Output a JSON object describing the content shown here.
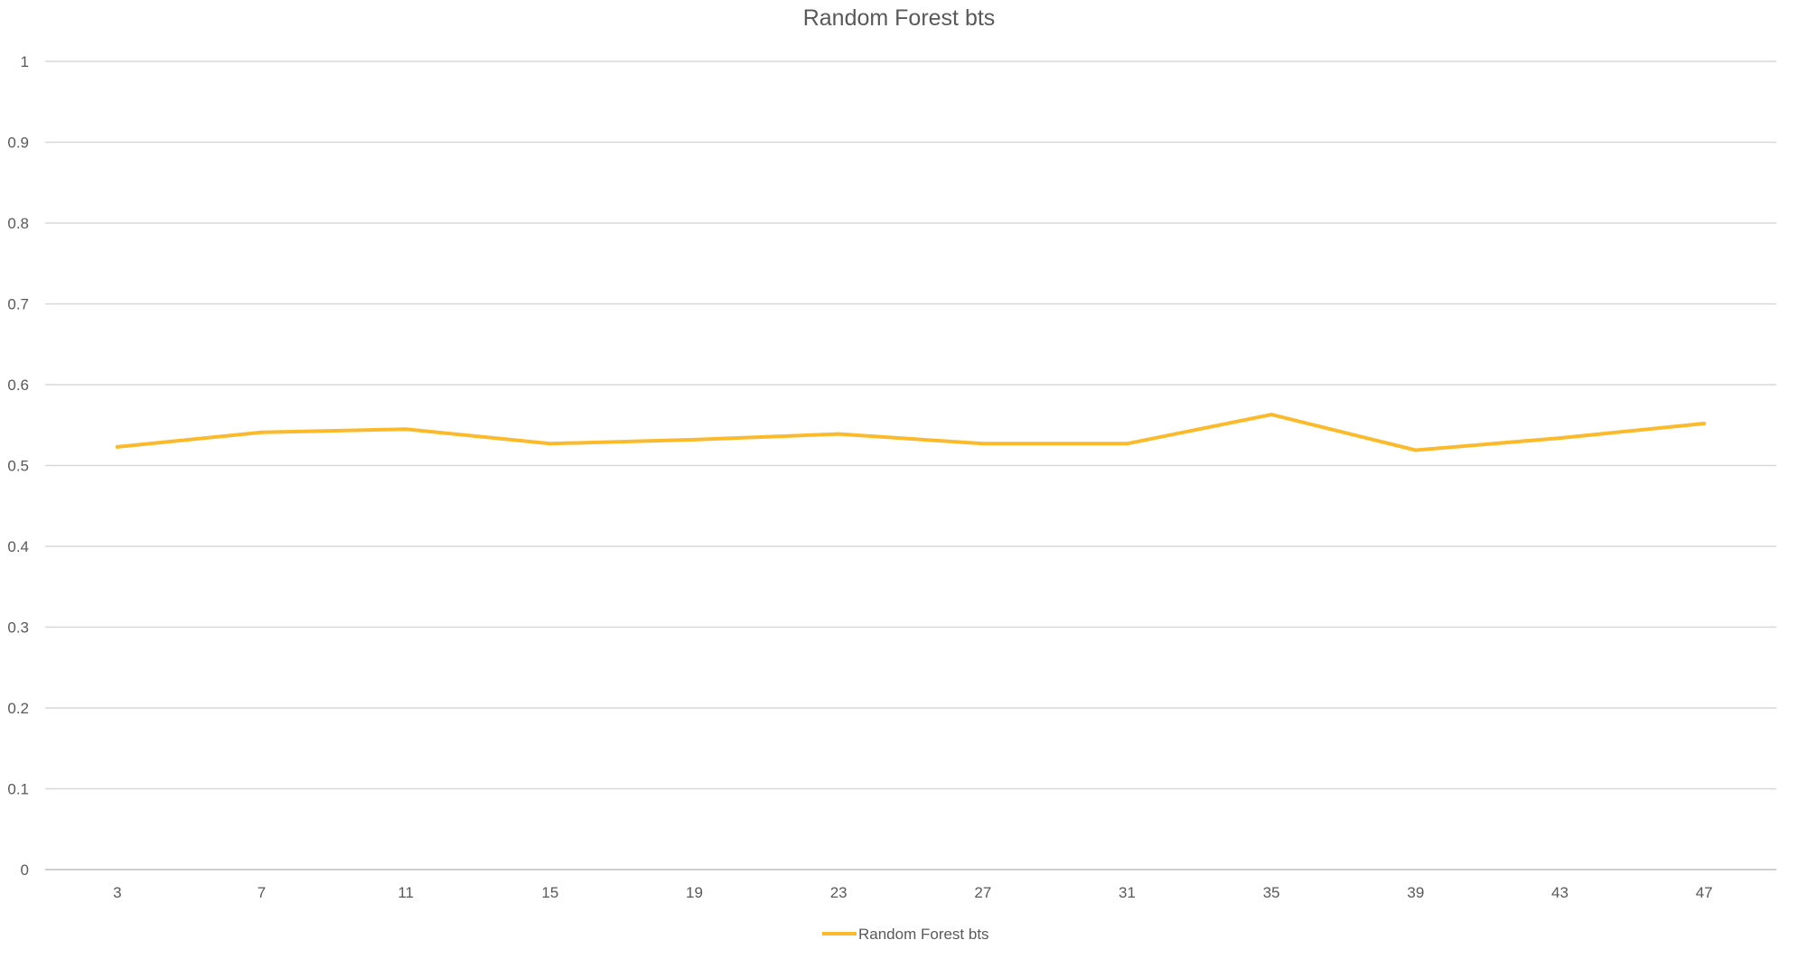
{
  "chart_data": {
    "type": "line",
    "title": "Random Forest bts",
    "xlabel": "",
    "ylabel": "",
    "categories": [
      "3",
      "7",
      "11",
      "15",
      "19",
      "23",
      "27",
      "31",
      "35",
      "39",
      "43",
      "47"
    ],
    "series": [
      {
        "name": "Random Forest bts",
        "color": "#FBBA2C",
        "values": [
          0.523,
          0.541,
          0.545,
          0.527,
          0.532,
          0.539,
          0.527,
          0.527,
          0.563,
          0.519,
          0.534,
          0.552
        ]
      }
    ],
    "ylim": [
      0,
      1
    ],
    "yticks": [
      "0",
      "0.1",
      "0.2",
      "0.3",
      "0.4",
      "0.5",
      "0.6",
      "0.7",
      "0.8",
      "0.9",
      "1"
    ],
    "grid": true,
    "legend_position": "bottom",
    "colors": {
      "grid": "#D9D9D9",
      "text": "#595959",
      "axis": "#BFBFBF"
    }
  }
}
